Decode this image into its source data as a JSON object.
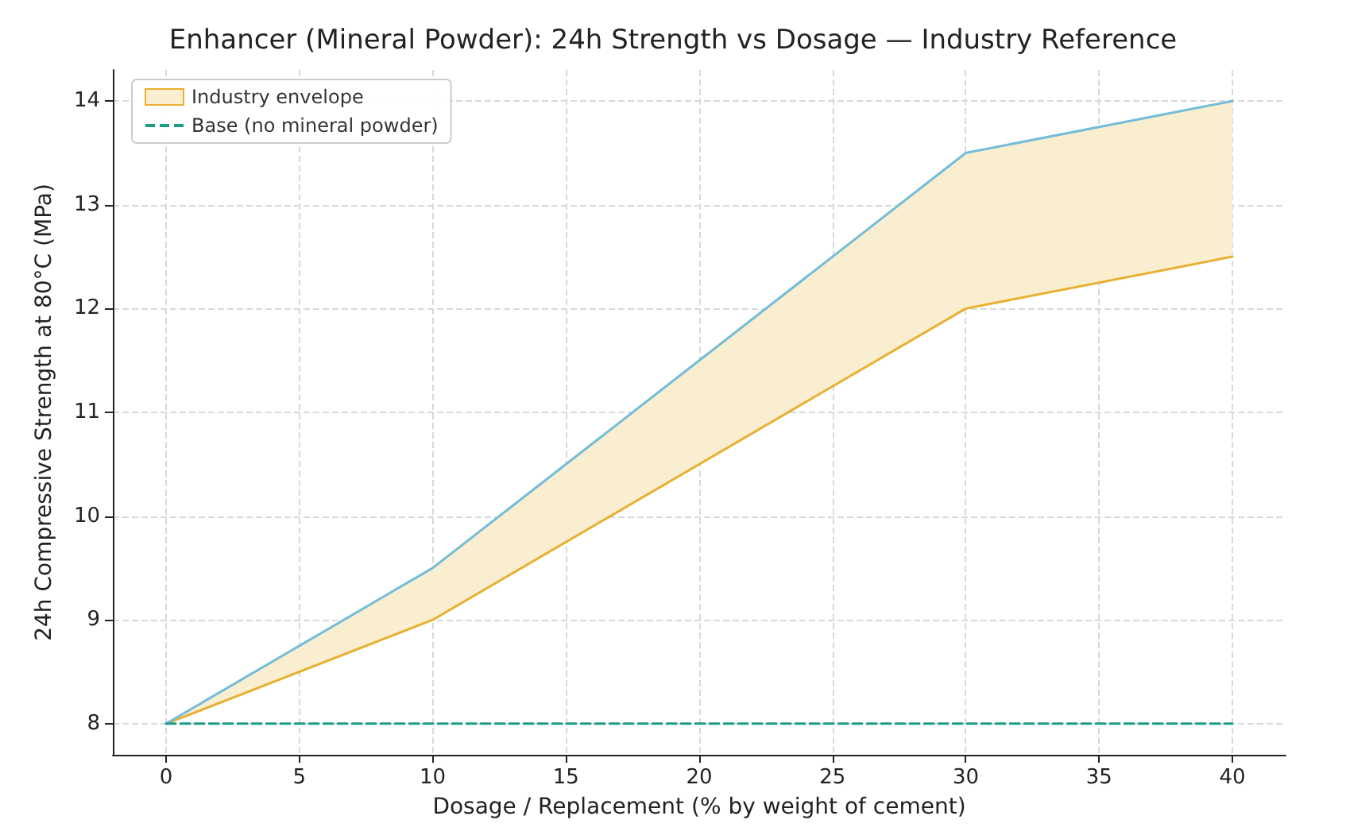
{
  "chart_data": {
    "type": "line",
    "title": "Enhancer (Mineral Powder): 24h Strength vs Dosage — Industry Reference",
    "xlabel": "Dosage / Replacement (% by weight of cement)",
    "ylabel": "24h Compressive Strength at 80°C (MPa)",
    "xlim": [
      -2,
      42
    ],
    "xticks": [
      0,
      5,
      10,
      15,
      20,
      25,
      30,
      35,
      40
    ],
    "ylim": [
      7.7,
      14.3
    ],
    "yticks": [
      8,
      9,
      10,
      11,
      12,
      13,
      14
    ],
    "grid": true,
    "legend": "top left",
    "marker": "none",
    "series": [
      {
        "name": "Industry envelope",
        "color": "#e8b030",
        "x": [
          0,
          10,
          30,
          40
        ],
        "values": [
          8,
          9,
          12,
          12.5
        ],
        "lower": [
          8,
          9,
          12,
          12.5
        ],
        "upper": [
          8,
          9.5,
          13.5,
          14
        ]
      },
      {
        "color": "#74bcd9",
        "x": [
          0,
          10,
          30,
          40
        ],
        "values": [
          8,
          9.5,
          13.5,
          14
        ]
      },
      {
        "name": "Base (no mineral powder)",
        "color": "#1a9c88",
        "x": [
          0,
          40
        ],
        "values": [
          8,
          8
        ],
        "line_style": "dashed"
      }
    ]
  }
}
